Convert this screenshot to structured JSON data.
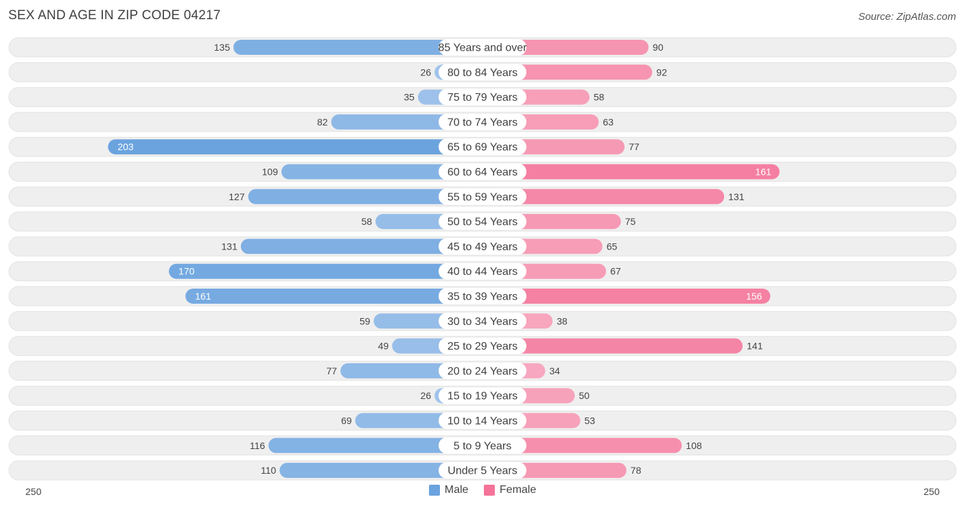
{
  "title": "SEX AND AGE IN ZIP CODE 04217",
  "source": "Source: ZipAtlas.com",
  "colors": {
    "male_dark": "#6aa3de",
    "male_light": "#aac9ed",
    "female_dark": "#f47399",
    "female_light": "#f8b4c8",
    "row_bg": "#efefef"
  },
  "legend": {
    "male": "Male",
    "female": "Female"
  },
  "axis": {
    "left_label": "250",
    "right_label": "250"
  },
  "chart_data": {
    "type": "bar",
    "orientation": "horizontal-diverging",
    "title": "SEX AND AGE IN ZIP CODE 04217",
    "xlim": [
      0,
      250
    ],
    "categories": [
      "85 Years and over",
      "80 to 84 Years",
      "75 to 79 Years",
      "70 to 74 Years",
      "65 to 69 Years",
      "60 to 64 Years",
      "55 to 59 Years",
      "50 to 54 Years",
      "45 to 49 Years",
      "40 to 44 Years",
      "35 to 39 Years",
      "30 to 34 Years",
      "25 to 29 Years",
      "20 to 24 Years",
      "15 to 19 Years",
      "10 to 14 Years",
      "5 to 9 Years",
      "Under 5 Years"
    ],
    "series": [
      {
        "name": "Male",
        "values": [
          135,
          26,
          35,
          82,
          203,
          109,
          127,
          58,
          131,
          170,
          161,
          59,
          49,
          77,
          26,
          69,
          116,
          110
        ]
      },
      {
        "name": "Female",
        "values": [
          90,
          92,
          58,
          63,
          77,
          161,
          131,
          75,
          65,
          67,
          156,
          38,
          141,
          34,
          50,
          53,
          108,
          78
        ]
      }
    ],
    "legend_position": "bottom-center"
  }
}
